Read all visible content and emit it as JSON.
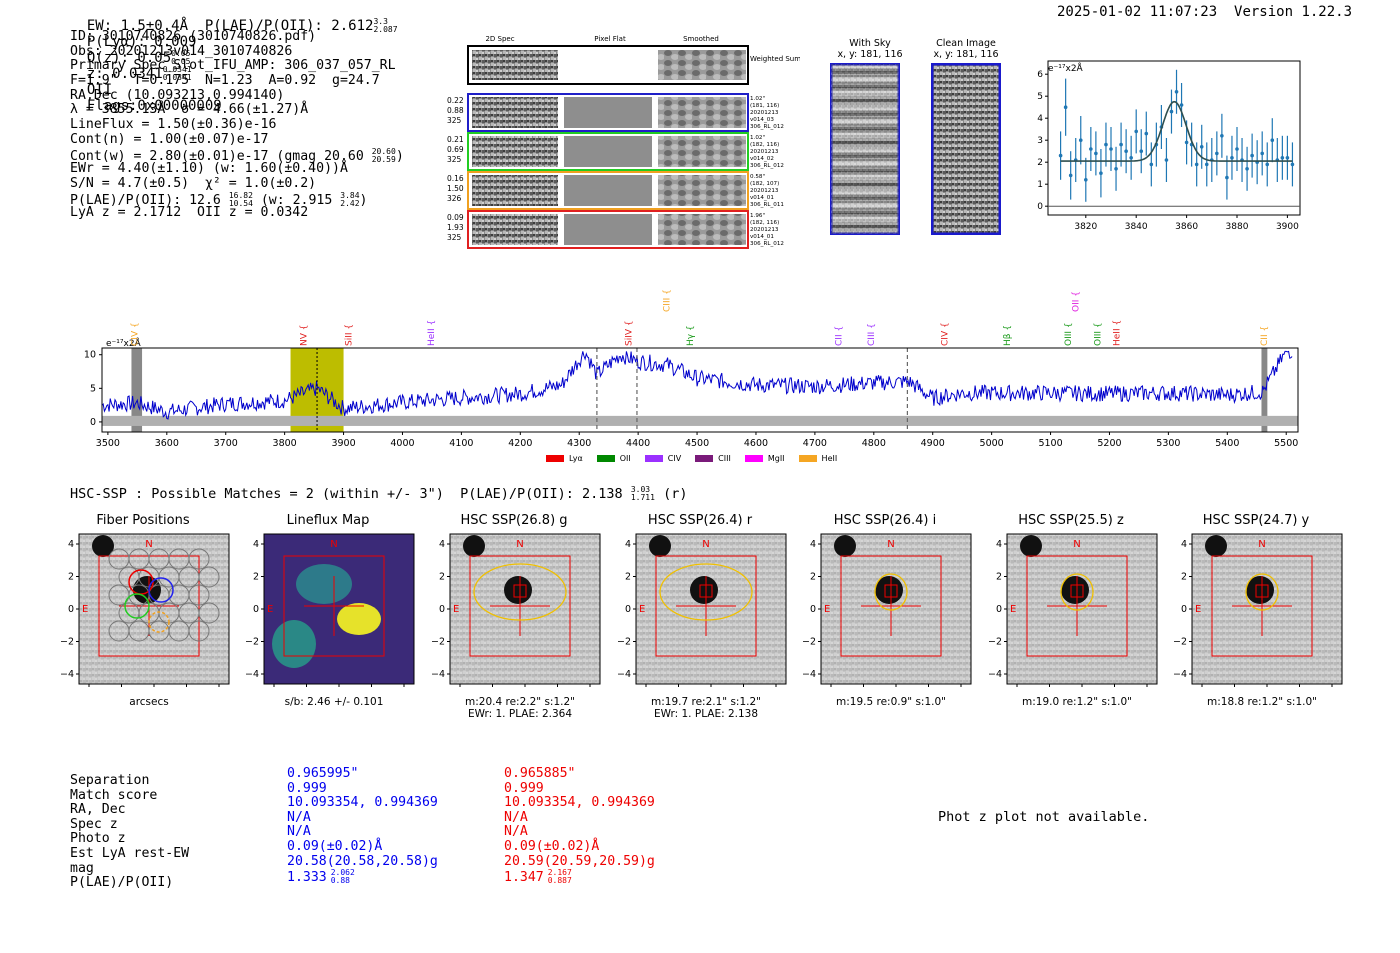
{
  "header": {
    "top_line": "EW: 1.5±0.4Å  P(LAE)/P(OII): 2.612",
    "plae_hi": "3.3",
    "plae_lo": "2.087",
    "plya": "P(Lyα): 0.009",
    "qz_label": "Q(z): 0.05",
    "qz_hi": "0.05",
    "qz_lo": "0.05",
    "z_label": "z: 0.0341",
    "z_hi": "0.0341",
    "z_lo": "0.0341",
    "z_line": "OII",
    "flags": "Flags:0x00000009",
    "datetime": "2025-01-02 11:07:23",
    "version": "Version 1.22.3"
  },
  "info": {
    "id": "ID: 3010740826 (3010740826.pdf)",
    "obs": "Obs: 20201213v014_3010740826",
    "primary": "Primary Spec_Slot_IFU_AMP: 306_037_057_RL",
    "fiber": "F=1.9\"  T=0.175  N=1.23  A=0.92  g=24.7",
    "radec": "RA,Dec (10.093213,0.994140)",
    "lambda": "λ = 3855.13Å  σ = 4.66(±1.27)Å",
    "lineflux": "LineFlux = 1.50(±0.36)e-16",
    "contn": "Cont(n) = 1.00(±0.07)e-17",
    "contw": "Cont(w) = 2.80(±0.01)e-17 (gmag 20.60",
    "contw_hi": "20.60",
    "contw_lo": "20.59",
    "ewr": "EWr = 4.40(±1.10) (w: 1.60(±0.40))Å",
    "sn": "S/N = 4.7(±0.5)  χ² = 1.0(±0.2)",
    "plae": "P(LAE)/P(OII): 12.6",
    "plae_hi": "16.82",
    "plae_lo": "10.54",
    "plae_w": "(w: 2.915",
    "plae_w_hi": "3.84",
    "plae_w_lo": "2.42",
    "lya_z": "LyA z = 2.1712  OII z = 0.0342"
  },
  "spec2d": {
    "col_titles": [
      "2D Spec",
      "Pixel Flat",
      "Smoothed"
    ],
    "weighted_label": "Weighted Sum",
    "rows": [
      {
        "left": [
          "0.22",
          "0.88",
          "325"
        ],
        "right": [
          "1.02\"",
          "(181, 116)",
          "20201213",
          "v014_03",
          "306_RL_012"
        ],
        "color": "#1f1fc8"
      },
      {
        "left": [
          "0.21",
          "0.69",
          "325"
        ],
        "right": [
          "1.02\"",
          "(182, 116)",
          "20201213",
          "v014_02",
          "306_RL_012"
        ],
        "color": "#22cc22"
      },
      {
        "left": [
          "0.16",
          "1.50",
          "326"
        ],
        "right": [
          "0.58\"",
          "(182, 107)",
          "20201213",
          "v014_01",
          "306_RL_011"
        ],
        "color": "#f0a020"
      },
      {
        "left": [
          "0.09",
          "1.93",
          "325"
        ],
        "right": [
          "1.96\"",
          "(182, 116)",
          "20201213",
          "v014_01",
          "306_RL_012"
        ],
        "color": "#e02020"
      }
    ]
  },
  "sky_panels": {
    "with_sky_title": "With Sky",
    "with_sky_coords": "x, y: 181, 116",
    "clean_title": "Clean Image",
    "clean_coords": "x, y: 181, 116"
  },
  "zoom_chart": {
    "ylabel": "e⁻¹⁷x2Å",
    "x_ticks": [
      "3820",
      "3840",
      "3860",
      "3880",
      "3900"
    ],
    "y_ticks": [
      "0",
      "1",
      "2",
      "3",
      "4",
      "5",
      "6"
    ]
  },
  "full_spectrum": {
    "ylabel": "e⁻¹⁷x2Å",
    "x_ticks": [
      "3500",
      "3600",
      "3700",
      "3800",
      "3900",
      "4000",
      "4100",
      "4200",
      "4300",
      "4400",
      "4500",
      "4600",
      "4700",
      "4800",
      "4900",
      "5000",
      "5100",
      "5200",
      "5300",
      "5400",
      "5500"
    ],
    "y_ticks": [
      "0",
      "5",
      "10"
    ],
    "line_labels": [
      {
        "name": "CIV",
        "wave": 3545,
        "color": "#f5a623",
        "row": 0
      },
      {
        "name": "NV",
        "wave": 3832,
        "color": "#e02020",
        "row": 0
      },
      {
        "name": "SiII",
        "wave": 3908,
        "color": "#e02020",
        "row": 0
      },
      {
        "name": "HeII",
        "wave": 4048,
        "color": "#9b30ff",
        "row": 0
      },
      {
        "name": "CIII",
        "wave": 4448,
        "color": "#f5a623",
        "row": 1
      },
      {
        "name": "SiIV",
        "wave": 4384,
        "color": "#e02020",
        "row": 0
      },
      {
        "name": "Hγ",
        "wave": 4488,
        "color": "#1a9a1a",
        "row": 0
      },
      {
        "name": "CII",
        "wave": 4740,
        "color": "#9b30ff",
        "row": 0
      },
      {
        "name": "CIII",
        "wave": 4795,
        "color": "#9b30ff",
        "row": 0
      },
      {
        "name": "CIV",
        "wave": 4920,
        "color": "#e02020",
        "row": 0
      },
      {
        "name": "Hβ",
        "wave": 5026,
        "color": "#1a9a1a",
        "row": 0
      },
      {
        "name": "OIII",
        "wave": 5130,
        "color": "#1a9a1a",
        "row": 0
      },
      {
        "name": "OIII",
        "wave": 5180,
        "color": "#1a9a1a",
        "row": 0
      },
      {
        "name": "HeII",
        "wave": 5212,
        "color": "#e02020",
        "row": 0
      },
      {
        "name": "OII",
        "wave": 5142,
        "color": "#e020e0",
        "row": 2
      },
      {
        "name": "CII",
        "wave": 5462,
        "color": "#f5a623",
        "row": 0
      }
    ],
    "legend": [
      {
        "name": "Lyα",
        "color": "#ee0000"
      },
      {
        "name": "OII",
        "color": "#008800"
      },
      {
        "name": "CIV",
        "color": "#9b30ff"
      },
      {
        "name": "CIII",
        "color": "#7a1a7a"
      },
      {
        "name": "MgII",
        "color": "#ff00ff"
      },
      {
        "name": "HeII",
        "color": "#f5a623"
      }
    ]
  },
  "hsc_header": {
    "text": "HSC-SSP : Possible Matches = 2 (within +/- 3\")  P(LAE)/P(OII): 2.138",
    "hi": "3.03",
    "lo": "1.711",
    "band": "(r)"
  },
  "cutouts": [
    {
      "title": "Fiber Positions",
      "cap1": "arcsecs",
      "cap2": ""
    },
    {
      "title": "Lineflux Map",
      "cap1": "s/b: 2.46 +/- 0.101",
      "cap2": ""
    },
    {
      "title": "HSC SSP(26.8) g",
      "cap1": "m:20.4  re:2.2\"  s:1.2\"",
      "cap2": "EWr: 1. PLAE: 2.364"
    },
    {
      "title": "HSC SSP(26.4) r",
      "cap1": "m:19.7  re:2.1\"  s:1.2\"",
      "cap2": "EWr: 1. PLAE: 2.138"
    },
    {
      "title": "HSC SSP(26.4) i",
      "cap1": "m:19.5  re:0.9\"  s:1.0\"",
      "cap2": ""
    },
    {
      "title": "HSC SSP(25.5) z",
      "cap1": "m:19.0  re:1.2\"  s:1.0\"",
      "cap2": ""
    },
    {
      "title": "HSC SSP(24.7) y",
      "cap1": "m:18.8  re:1.2\"  s:1.0\"",
      "cap2": ""
    }
  ],
  "cutout_axis": {
    "ticks": [
      "−4",
      "−2",
      "0",
      "2",
      "4"
    ],
    "n_label": "N",
    "e_label": "E"
  },
  "matches": {
    "labels": [
      "Separation",
      "Match score",
      "RA, Dec",
      "Spec z",
      "Photo z",
      "Est LyA rest-EW",
      "mag",
      "P(LAE)/P(OII)"
    ],
    "blue": [
      "0.965995\"",
      "0.999",
      "10.093354, 0.994369",
      "N/A",
      "N/A",
      "0.09(±0.02)Å",
      "20.58(20.58,20.58)g",
      "1.333"
    ],
    "blue_plae_hi": "2.062",
    "blue_plae_lo": "0.88",
    "red": [
      "0.965885\"",
      "0.999",
      "10.093354, 0.994369",
      "N/A",
      "N/A",
      "0.09(±0.02)Å",
      "20.59(20.59,20.59)g",
      "1.347"
    ],
    "red_plae_hi": "2.167",
    "red_plae_lo": "0.887"
  },
  "photz_note": "Phot z plot not available.",
  "chart_data": [
    {
      "type": "scatter",
      "title": "",
      "xlabel": "",
      "ylabel": "e⁻¹⁷x2Å",
      "xlim": [
        3805,
        3905
      ],
      "ylim": [
        -0.4,
        6.6
      ],
      "x": [
        3810,
        3812,
        3814,
        3816,
        3818,
        3820,
        3822,
        3824,
        3826,
        3828,
        3830,
        3832,
        3834,
        3836,
        3838,
        3840,
        3842,
        3844,
        3846,
        3848,
        3850,
        3852,
        3854,
        3856,
        3858,
        3860,
        3862,
        3864,
        3866,
        3868,
        3870,
        3872,
        3874,
        3876,
        3878,
        3880,
        3882,
        3884,
        3886,
        3888,
        3890,
        3892,
        3894,
        3896,
        3898,
        3900,
        3902
      ],
      "y": [
        2.3,
        4.5,
        1.4,
        2.1,
        3.0,
        1.2,
        2.6,
        2.4,
        1.5,
        2.8,
        2.6,
        1.7,
        2.8,
        2.5,
        2.2,
        3.4,
        2.5,
        3.3,
        1.9,
        2.8,
        3.6,
        2.1,
        4.3,
        5.2,
        4.6,
        2.9,
        2.8,
        1.9,
        2.7,
        1.9,
        2.1,
        2.4,
        3.2,
        1.3,
        2.2,
        2.6,
        2.1,
        1.7,
        2.3,
        2.0,
        2.4,
        1.9,
        3.0,
        2.1,
        2.2,
        2.2,
        1.9
      ],
      "err": [
        1.1,
        1.3,
        1.1,
        1.0,
        1.1,
        1.0,
        1.0,
        1.0,
        1.1,
        1.0,
        1.0,
        1.0,
        1.0,
        1.0,
        1.0,
        1.0,
        1.0,
        1.0,
        1.0,
        1.0,
        1.0,
        1.0,
        1.0,
        1.0,
        1.0,
        1.0,
        1.0,
        1.0,
        1.0,
        1.0,
        1.0,
        1.0,
        1.0,
        1.0,
        1.0,
        1.0,
        1.0,
        1.0,
        1.0,
        1.0,
        1.0,
        1.0,
        1.0,
        1.0,
        1.0,
        1.0,
        1.0
      ],
      "fit": {
        "continuum": 2.05,
        "amplitude": 2.7,
        "center": 3855.13,
        "sigma": 4.66
      }
    },
    {
      "type": "line",
      "title": "",
      "xlabel": "",
      "ylabel": "e⁻¹⁷x2Å",
      "xlim": [
        3490,
        5520
      ],
      "ylim": [
        -1.5,
        11
      ],
      "series": [
        {
          "name": "spectrum",
          "color": "#0000cc",
          "segments": [
            [
              3490,
              2.5
            ],
            [
              3550,
              2.8
            ],
            [
              3600,
              1.5
            ],
            [
              3700,
              2.7
            ],
            [
              3800,
              3.2
            ],
            [
              3855,
              5.0
            ],
            [
              3900,
              2.0
            ],
            [
              4000,
              2.9
            ],
            [
              4100,
              3.6
            ],
            [
              4200,
              4.2
            ],
            [
              4270,
              5.5
            ],
            [
              4310,
              10.5
            ],
            [
              4330,
              7.0
            ],
            [
              4370,
              10.0
            ],
            [
              4400,
              9.0
            ],
            [
              4450,
              8.5
            ],
            [
              4500,
              6.5
            ],
            [
              4600,
              5.5
            ],
            [
              4700,
              5.3
            ],
            [
              4800,
              5.8
            ],
            [
              4860,
              6.0
            ],
            [
              4900,
              3.5
            ],
            [
              4950,
              4.3
            ],
            [
              5000,
              4.3
            ],
            [
              5100,
              4.3
            ],
            [
              5200,
              4.2
            ],
            [
              5300,
              4.3
            ],
            [
              5400,
              4.0
            ],
            [
              5460,
              4.5
            ],
            [
              5500,
              10.5
            ]
          ]
        },
        {
          "name": "sky error",
          "color": "#aaaaaa",
          "level": 0.5
        }
      ],
      "highlight_band": [
        3810,
        3900
      ],
      "marker_line": 3855,
      "dashed_lines": [
        4330,
        4398,
        4857
      ],
      "gray_bands": [
        [
          3540,
          3558
        ],
        [
          5458,
          5468
        ]
      ]
    }
  ],
  "colors": {
    "blue": "#0000ee",
    "red": "#ee0000",
    "olive": "#bdbd00"
  }
}
